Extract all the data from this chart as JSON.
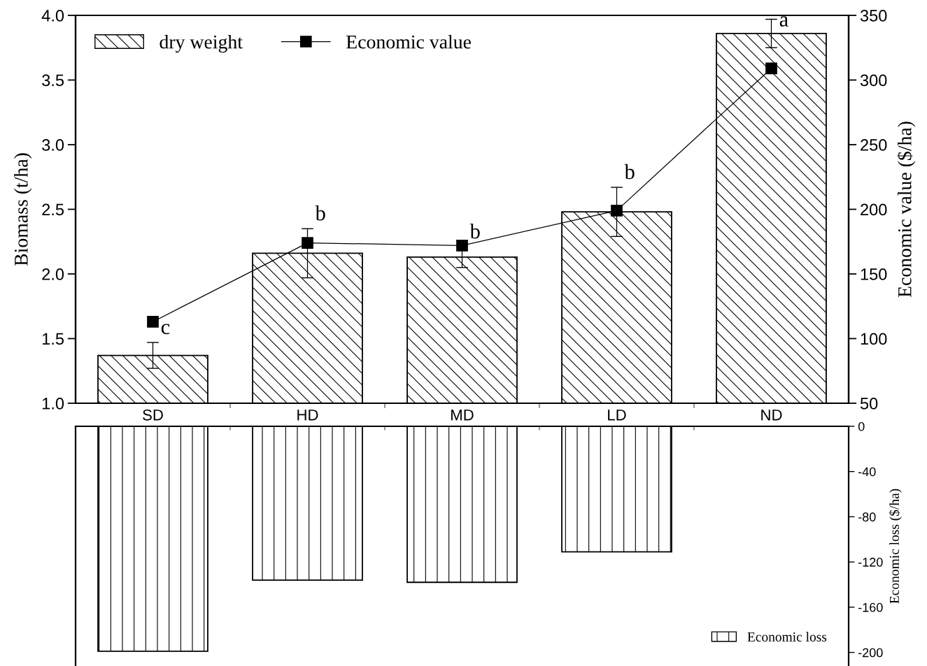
{
  "chart_data": [
    {
      "type": "bar",
      "categories": [
        "SD",
        "HD",
        "MD",
        "LD",
        "ND"
      ],
      "ylabel": "Biomass (t/ha)",
      "y2label": "Economic value ($/ha)",
      "ylim": [
        1.0,
        4.0
      ],
      "yticks": [
        {
          "value": 1.0,
          "label": "1.0"
        },
        {
          "value": 1.5,
          "label": "1.5"
        },
        {
          "value": 2.0,
          "label": "2.0"
        },
        {
          "value": 2.5,
          "label": "2.5"
        },
        {
          "value": 3.0,
          "label": "3.0"
        },
        {
          "value": 3.5,
          "label": "3.5"
        },
        {
          "value": 4.0,
          "label": "4.0"
        }
      ],
      "y2lim": [
        50,
        350
      ],
      "y2ticks": [
        50,
        100,
        150,
        200,
        250,
        300,
        350
      ],
      "legend": "top left",
      "grid": false,
      "series": [
        {
          "name": "dry weight",
          "type": "bar",
          "color": "#000000",
          "values": [
            1.37,
            2.16,
            2.13,
            2.48,
            3.86
          ],
          "errors": [
            0.1,
            0.19,
            0.08,
            0.19,
            0.11
          ]
        },
        {
          "name": "Economic value",
          "type": "line",
          "axis": "y2",
          "color": "#000000",
          "marker": "square",
          "line_style": "solid",
          "values": [
            113,
            174,
            172,
            199,
            309
          ]
        }
      ],
      "annotations": [
        {
          "text": "c",
          "x": "SD",
          "y": 1.47
        },
        {
          "text": "b",
          "x": "HD",
          "y": 2.35
        },
        {
          "text": "b",
          "x": "MD",
          "y": 2.21
        },
        {
          "text": "b",
          "x": "LD",
          "y": 2.67
        },
        {
          "text": "a",
          "x": "ND",
          "y": 3.85
        }
      ]
    },
    {
      "type": "bar",
      "categories": [
        null,
        null,
        null,
        null,
        null
      ],
      "ylabel": "Economic loss ($/ha)",
      "ylim": [
        -212,
        0
      ],
      "yticks": [
        0,
        -40,
        -80,
        -120,
        -160,
        -200
      ],
      "legend": "bottom right",
      "tick_labels": "y",
      "grid": false,
      "series": [
        {
          "name": "Economic loss",
          "color": "#000000",
          "values": [
            -199,
            -136,
            -138,
            -111,
            null
          ]
        }
      ]
    }
  ]
}
